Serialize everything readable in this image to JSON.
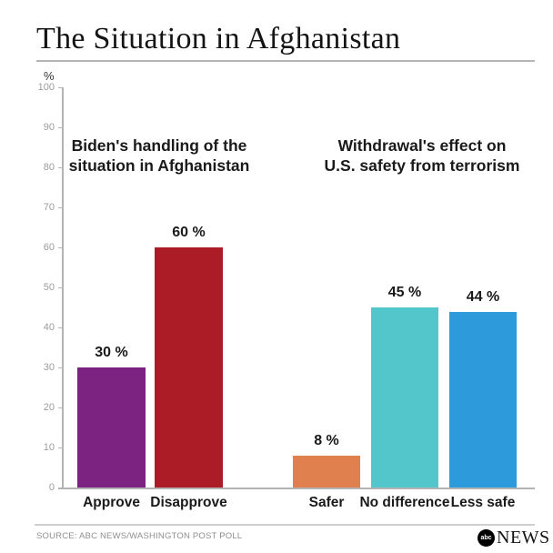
{
  "header": {
    "title": "The Situation in Afghanistan"
  },
  "chart_data": {
    "type": "bar",
    "title": "The Situation in Afghanistan",
    "y_unit": "%",
    "ylim": [
      0,
      100
    ],
    "yticks": [
      0,
      10,
      20,
      30,
      40,
      50,
      60,
      70,
      80,
      90,
      100
    ],
    "grid": false,
    "legend": "none",
    "groups": [
      {
        "annotation": "Biden's handling of the\nsituation in Afghanistan",
        "categories": [
          "Approve",
          "Disapprove"
        ],
        "values": [
          30,
          60
        ],
        "value_labels": [
          "30 %",
          "60 %"
        ],
        "colors": [
          "#7C2381",
          "#AC1C27"
        ]
      },
      {
        "annotation": "Withdrawal's effect on\nU.S. safety from terrorism",
        "categories": [
          "Safer",
          "No difference",
          "Less safe"
        ],
        "values": [
          8,
          45,
          44
        ],
        "value_labels": [
          "8 %",
          "45 %",
          "44 %"
        ],
        "colors": [
          "#E0804E",
          "#52C6CB",
          "#2D9BDB"
        ]
      }
    ]
  },
  "footer": {
    "source": "SOURCE: ABC NEWS/WASHINGTON POST POLL",
    "logo_abc": "abc",
    "logo_news": "NEWS"
  }
}
